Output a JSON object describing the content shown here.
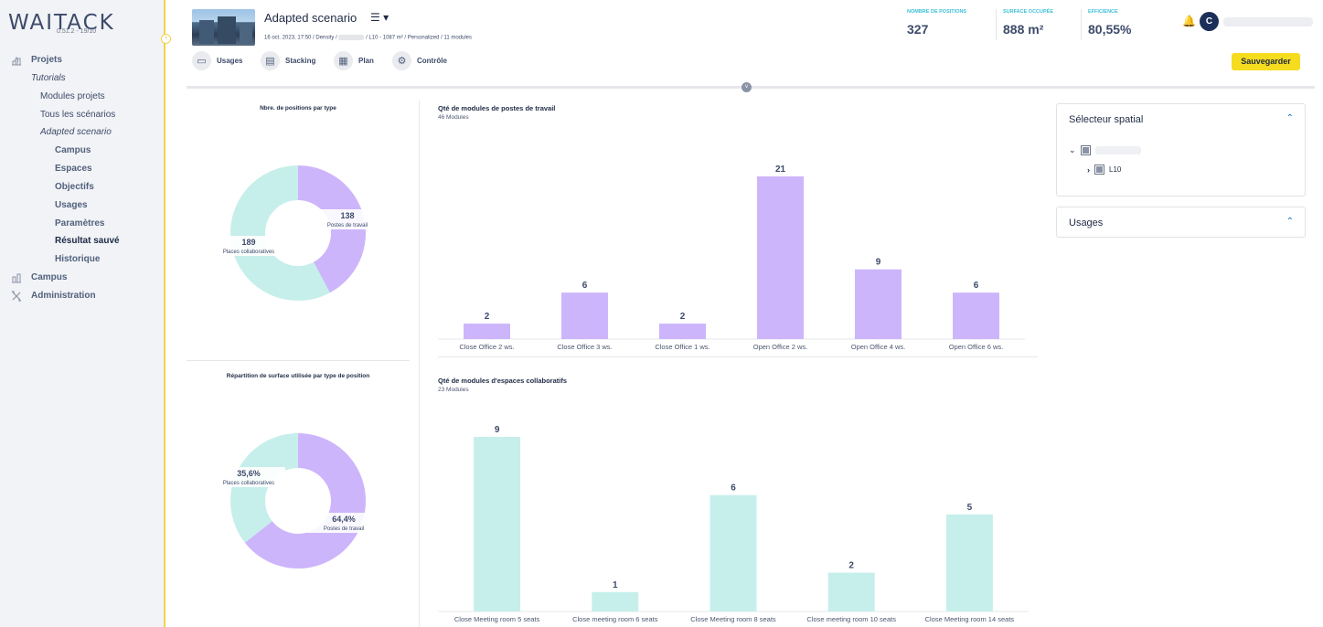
{
  "app": {
    "logo": "WAITACK",
    "version": "0.51.2 - 19/10"
  },
  "sidebar": {
    "items": [
      {
        "label": "Projets",
        "level": "top",
        "icon": "projects-icon"
      },
      {
        "label": "Tutorials",
        "level": "italic"
      },
      {
        "label": "Modules projets",
        "level": "sub"
      },
      {
        "label": "Tous les scénarios",
        "level": "sub"
      },
      {
        "label": "Adapted scenario",
        "level": "sub-italic"
      },
      {
        "label": "Campus",
        "level": "leaf"
      },
      {
        "label": "Espaces",
        "level": "leaf"
      },
      {
        "label": "Objectifs",
        "level": "leaf"
      },
      {
        "label": "Usages",
        "level": "leaf"
      },
      {
        "label": "Paramètres",
        "level": "leaf"
      },
      {
        "label": "Résultat sauvé",
        "level": "leaf-active"
      },
      {
        "label": "Historique",
        "level": "leaf"
      },
      {
        "label": "Campus",
        "level": "top",
        "icon": "campus-icon"
      },
      {
        "label": "Administration",
        "level": "top",
        "icon": "tools-icon"
      }
    ]
  },
  "header": {
    "scenario_title": "Adapted scenario",
    "menu_glyph": "☰ ▾",
    "meta_left": "16 oct. 2023, 17:50 / Density /",
    "meta_right": "/ L10 - 1087 m² / Personalized / 11 modules",
    "toolbar": [
      {
        "label": "Usages",
        "icon": "sofa-icon"
      },
      {
        "label": "Stacking",
        "icon": "stacking-icon"
      },
      {
        "label": "Plan",
        "icon": "building-icon"
      },
      {
        "label": "Contrôle",
        "icon": "gear-icon"
      }
    ],
    "kpis": [
      {
        "label": "NOMBRE DE POSITIONS",
        "value": "327"
      },
      {
        "label": "SURFACE OCCUPÉE",
        "value": "888 m²"
      },
      {
        "label": "EFFICIENCE",
        "value": "80,55%"
      }
    ],
    "avatar_initial": "C",
    "save_label": "Sauvegarder"
  },
  "colors": {
    "purple": "#cdb5fb",
    "teal": "#c6efeb",
    "accent_yellow": "#f5dc1e",
    "kpi_cyan": "#3ec0d8",
    "navy": "#1c2f5a"
  },
  "right_panels": {
    "spatial_title": "Sélecteur spatial",
    "tree_child": "L10",
    "usages_title": "Usages"
  },
  "chart_data": [
    {
      "type": "pie",
      "title": "Nbre. de positions par type",
      "donut": true,
      "slices": [
        {
          "label": "Postes de travail",
          "value": 138,
          "display": "138",
          "color": "#cdb5fb"
        },
        {
          "label": "Places collaboratives",
          "value": 189,
          "display": "189",
          "color": "#c6efeb"
        }
      ]
    },
    {
      "type": "pie",
      "title": "Répartition de surface utilisée par type de position",
      "donut": true,
      "slices": [
        {
          "label": "Postes de travail",
          "value": 64.4,
          "display": "64,4%",
          "color": "#cdb5fb"
        },
        {
          "label": "Places collaboratives",
          "value": 35.6,
          "display": "35,6%",
          "color": "#c6efeb"
        }
      ]
    },
    {
      "type": "bar",
      "title": "Qté de modules de postes de travail",
      "subtitle": "46 Modules",
      "color": "#cdb5fb",
      "categories": [
        "Close Office 2 ws.",
        "Close Office 3 ws.",
        "Close Office 1 ws.",
        "Open Office 2 ws.",
        "Open Office 4 ws.",
        "Open Office 6 ws."
      ],
      "values": [
        2,
        6,
        2,
        21,
        9,
        6
      ],
      "ylim": [
        0,
        21
      ]
    },
    {
      "type": "bar",
      "title": "Qté de modules d'espaces collaboratifs",
      "subtitle": "23 Modules",
      "color": "#c6efeb",
      "categories": [
        "Close Meeting room 5 seats",
        "Close meeting room 6 seats",
        "Close Meeting room 8 seats",
        "Close meeting room 10 seats",
        "Close Meeting room 14 seats"
      ],
      "values": [
        9,
        1,
        6,
        2,
        5
      ],
      "ylim": [
        0,
        9
      ]
    }
  ]
}
